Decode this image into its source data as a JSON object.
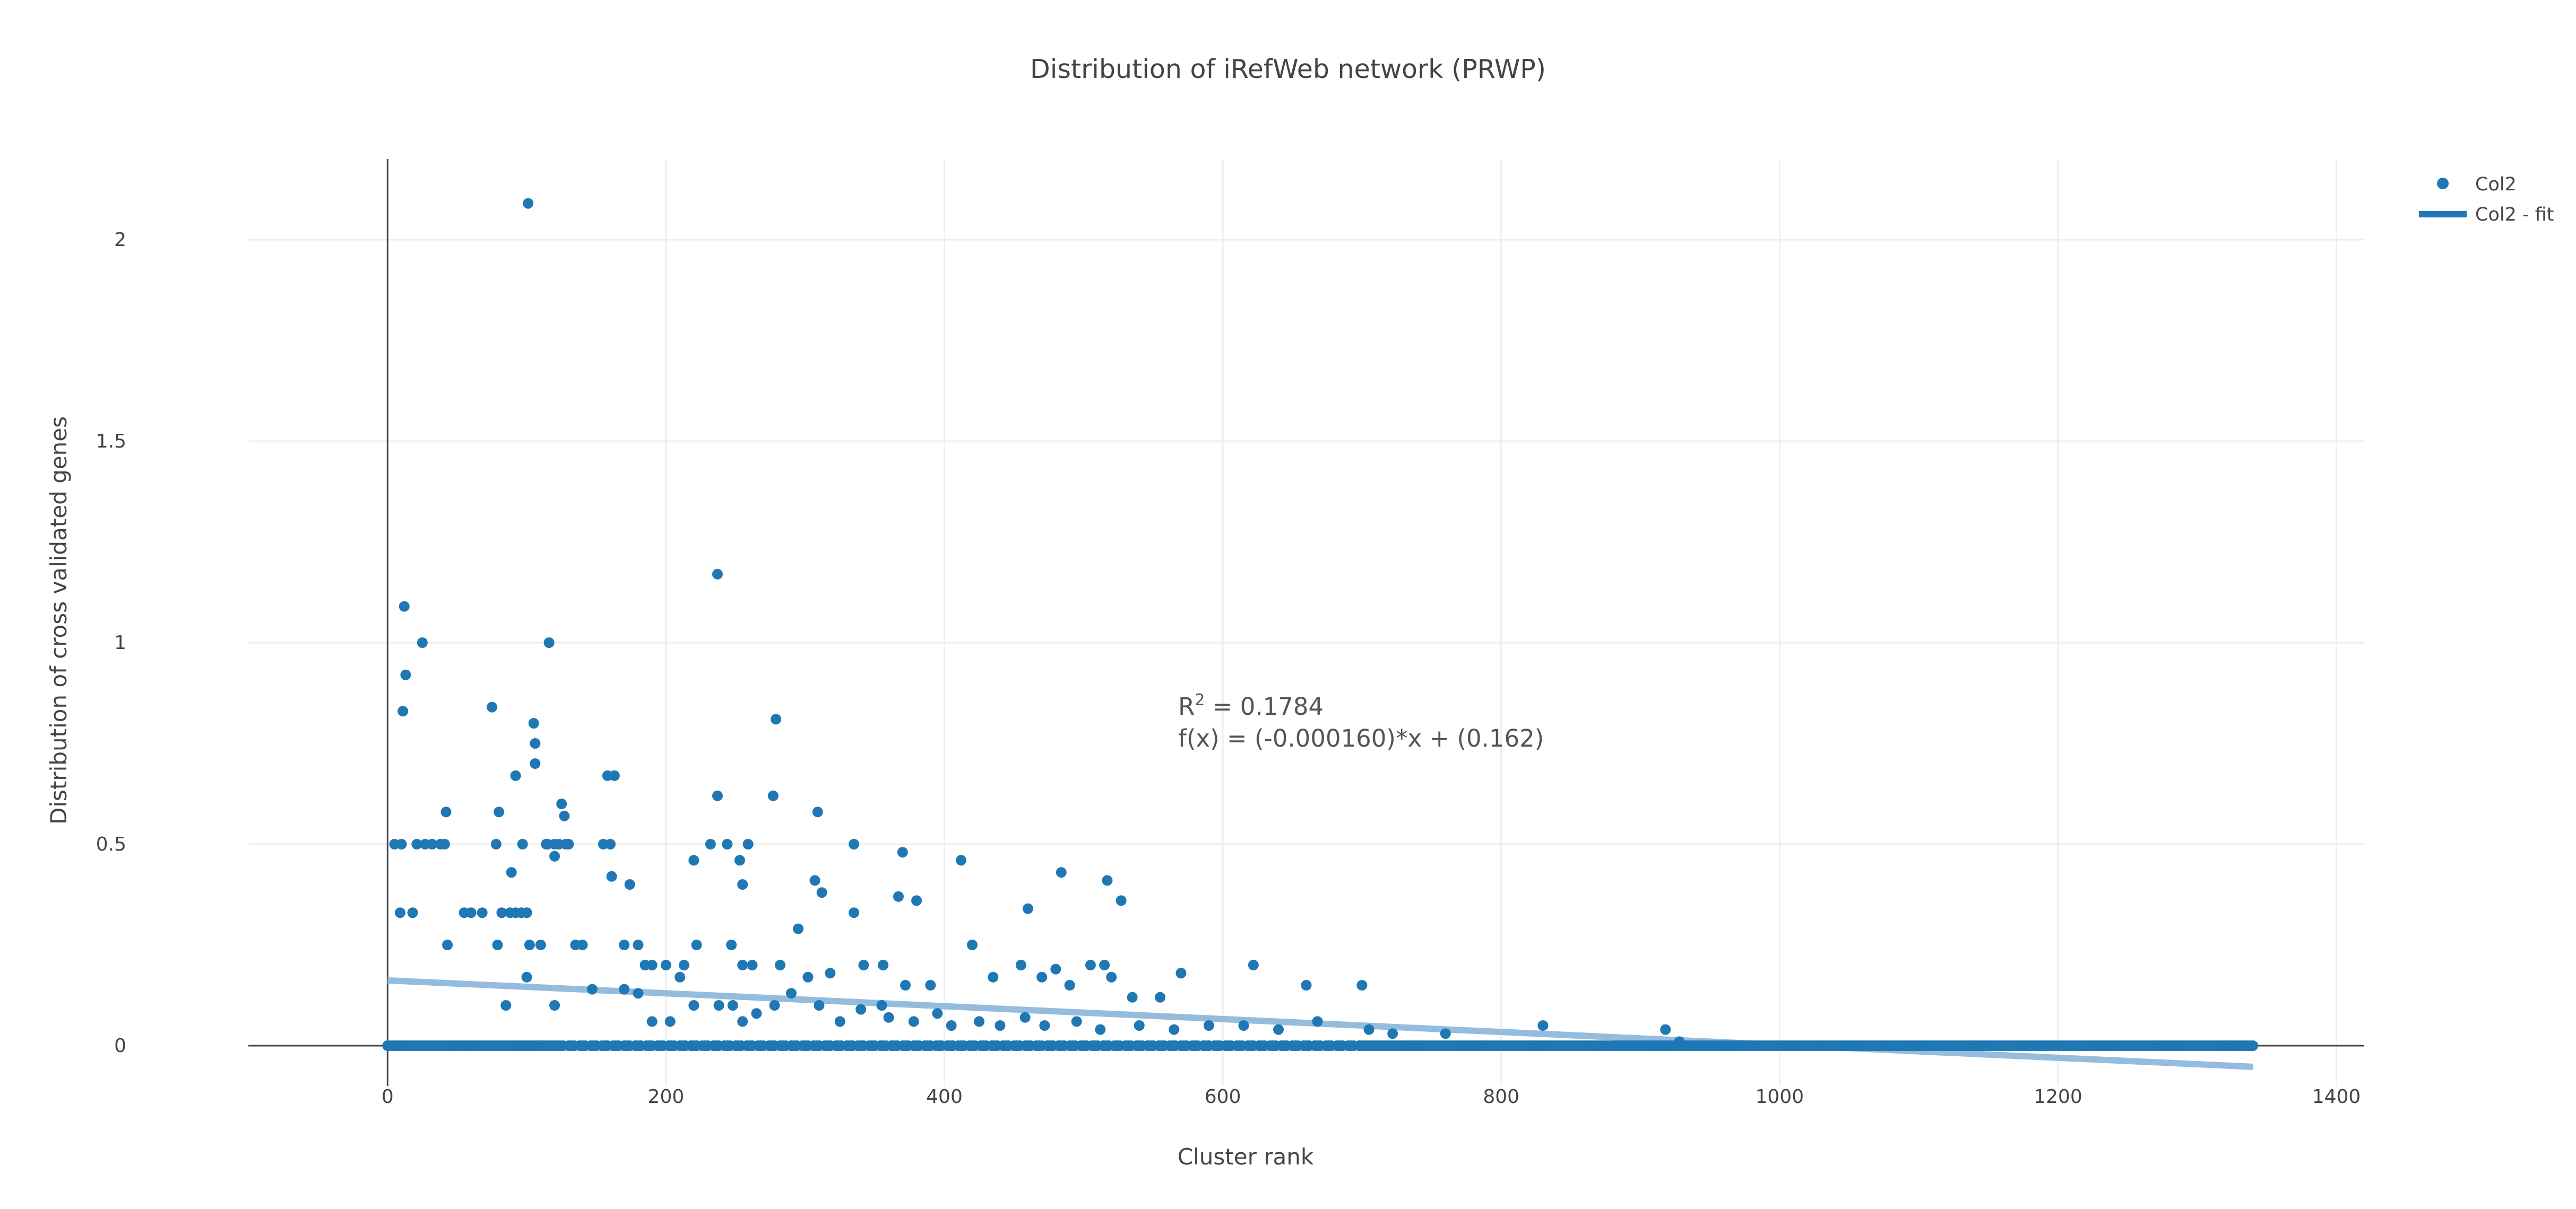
{
  "chart_data": {
    "type": "scatter",
    "title": "Distribution of iRefWeb network (PRWP)",
    "xlabel": "Cluster rank",
    "ylabel": "Distribution of cross validated genes",
    "xlim": [
      -100,
      1420
    ],
    "ylim": [
      -0.1,
      2.2
    ],
    "x_ticks": [
      0,
      200,
      400,
      600,
      800,
      1000,
      1200,
      1400
    ],
    "x_tick_labels": [
      "0",
      "200",
      "400",
      "600",
      "800",
      "1000",
      "1200",
      "1400"
    ],
    "y_ticks": [
      0,
      0.5,
      1,
      1.5,
      2
    ],
    "y_tick_labels": [
      "0",
      "0.5",
      "1",
      "1.5",
      "2"
    ],
    "grid": true,
    "legend_position": "top-right",
    "colors": {
      "points": "#1f77b4",
      "fit_line": "#94bcdd",
      "legend_fit": "#1f77b4",
      "axis": "#444444",
      "grid": "#eeeeee"
    },
    "series": [
      {
        "name": "Col2",
        "mode": "markers",
        "x": [
          101,
          237,
          12,
          116,
          25,
          13,
          279,
          11,
          75,
          105,
          106,
          92,
          158,
          163,
          106,
          125,
          277,
          237,
          127,
          128,
          309,
          80,
          42,
          114,
          123,
          335,
          412,
          484,
          370,
          517,
          527,
          5,
          10,
          21,
          27,
          32,
          38,
          41,
          78,
          97,
          115,
          120,
          130,
          155,
          160,
          232,
          244,
          259,
          253,
          120,
          220,
          89,
          82,
          96,
          307,
          380,
          295,
          174,
          161,
          312,
          255,
          335,
          367,
          460,
          100,
          9,
          18,
          55,
          60,
          68,
          88,
          92,
          100,
          43,
          79,
          102,
          110,
          135,
          140,
          170,
          180,
          185,
          190,
          200,
          210,
          213,
          222,
          247,
          255,
          262,
          282,
          302,
          318,
          342,
          356,
          372,
          390,
          420,
          435,
          455,
          470,
          480,
          490,
          505,
          515,
          520,
          535,
          555,
          570,
          622,
          660,
          700,
          85,
          100,
          120,
          147,
          170,
          180,
          190,
          203,
          220,
          238,
          248,
          255,
          265,
          278,
          290,
          310,
          325,
          340,
          355,
          360,
          378,
          395,
          405,
          425,
          440,
          458,
          472,
          495,
          512,
          540,
          565,
          590,
          615,
          640,
          668,
          705,
          722,
          760,
          830,
          918,
          928
        ],
        "y": [
          2.09,
          1.17,
          1.09,
          1.0,
          1.0,
          0.92,
          0.81,
          0.83,
          0.84,
          0.8,
          0.7,
          0.67,
          0.67,
          0.67,
          0.75,
          0.6,
          0.62,
          0.62,
          0.57,
          0.5,
          0.58,
          0.58,
          0.58,
          0.5,
          0.5,
          0.5,
          0.46,
          0.43,
          0.48,
          0.41,
          0.36,
          0.5,
          0.5,
          0.5,
          0.5,
          0.5,
          0.5,
          0.5,
          0.5,
          0.5,
          0.5,
          0.5,
          0.5,
          0.5,
          0.5,
          0.5,
          0.5,
          0.5,
          0.46,
          0.47,
          0.46,
          0.43,
          0.33,
          0.33,
          0.41,
          0.36,
          0.29,
          0.4,
          0.42,
          0.38,
          0.4,
          0.33,
          0.37,
          0.34,
          0.33,
          0.33,
          0.33,
          0.33,
          0.33,
          0.33,
          0.33,
          0.33,
          0.33,
          0.25,
          0.25,
          0.25,
          0.25,
          0.25,
          0.25,
          0.25,
          0.25,
          0.2,
          0.2,
          0.2,
          0.17,
          0.2,
          0.25,
          0.25,
          0.2,
          0.2,
          0.2,
          0.17,
          0.18,
          0.2,
          0.2,
          0.15,
          0.15,
          0.25,
          0.17,
          0.2,
          0.17,
          0.19,
          0.15,
          0.2,
          0.2,
          0.17,
          0.12,
          0.12,
          0.18,
          0.2,
          0.15,
          0.15,
          0.1,
          0.17,
          0.1,
          0.14,
          0.14,
          0.13,
          0.06,
          0.06,
          0.1,
          0.1,
          0.1,
          0.06,
          0.08,
          0.1,
          0.13,
          0.1,
          0.06,
          0.09,
          0.1,
          0.07,
          0.06,
          0.08,
          0.05,
          0.06,
          0.05,
          0.07,
          0.05,
          0.06,
          0.04,
          0.05,
          0.04,
          0.05,
          0.05,
          0.04,
          0.06,
          0.04,
          0.03,
          0.03,
          0.05,
          0.04,
          0.01
        ],
        "baseline_zero_x_range": [
          0,
          1340
        ],
        "baseline_zero_y": 0
      },
      {
        "name": "Col2 - fit",
        "mode": "lines",
        "x": [
          0,
          1340
        ],
        "y": [
          0.162,
          -0.0524
        ]
      }
    ],
    "annotations": {
      "r2_prefix": "R",
      "r2_superscript": "2",
      "r2_value": " = 0.1784",
      "fx": "f(x) = (-0.000160)*x + (0.162)",
      "anchor_x": 625,
      "anchor_y": 0.81
    }
  }
}
